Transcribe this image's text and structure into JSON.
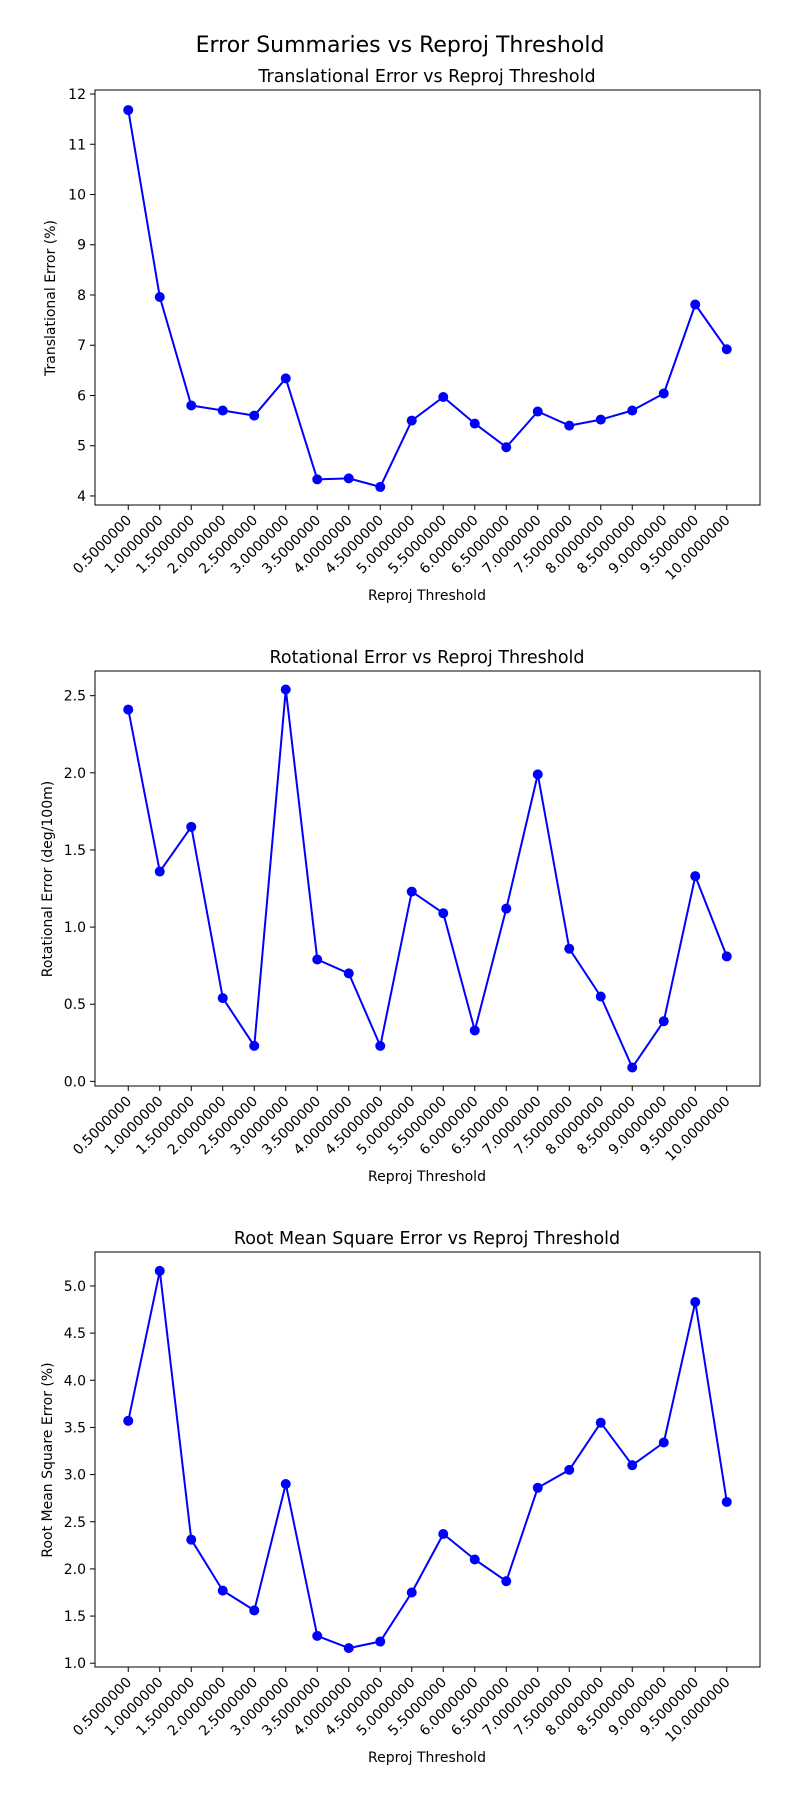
{
  "figure": {
    "title": "Error Summaries vs Reproj Threshold"
  },
  "colors": {
    "series": "#0000ff",
    "axes": "#000000",
    "background": "#ffffff"
  },
  "chart_data": [
    {
      "type": "line",
      "title": "Translational Error vs Reproj Threshold",
      "xlabel": "Reproj Threshold",
      "ylabel": "Translational Error (%)",
      "categories": [
        "0.5000000",
        "1.0000000",
        "1.5000000",
        "2.0000000",
        "2.5000000",
        "3.0000000",
        "3.5000000",
        "4.0000000",
        "4.5000000",
        "5.0000000",
        "5.5000000",
        "6.0000000",
        "6.5000000",
        "7.0000000",
        "7.5000000",
        "8.0000000",
        "8.5000000",
        "9.0000000",
        "9.5000000",
        "10.0000000"
      ],
      "values": [
        11.68,
        7.96,
        5.8,
        5.7,
        5.6,
        6.34,
        4.33,
        4.35,
        4.18,
        5.5,
        5.97,
        5.44,
        4.97,
        5.68,
        5.4,
        5.52,
        5.7,
        6.04,
        7.81,
        6.92
      ],
      "ylim": [
        3.82,
        12.08
      ],
      "yticks": [
        "4",
        "5",
        "6",
        "7",
        "8",
        "9",
        "10",
        "11",
        "12"
      ],
      "ytick_values": [
        4,
        5,
        6,
        7,
        8,
        9,
        10,
        11,
        12
      ],
      "grid": false,
      "marker": "circle"
    },
    {
      "type": "line",
      "title": "Rotational Error vs Reproj Threshold",
      "xlabel": "Reproj Threshold",
      "ylabel": "Rotational Error (deg/100m)",
      "categories": [
        "0.5000000",
        "1.0000000",
        "1.5000000",
        "2.0000000",
        "2.5000000",
        "3.0000000",
        "3.5000000",
        "4.0000000",
        "4.5000000",
        "5.0000000",
        "5.5000000",
        "6.0000000",
        "6.5000000",
        "7.0000000",
        "7.5000000",
        "8.0000000",
        "8.5000000",
        "9.0000000",
        "9.5000000",
        "10.0000000"
      ],
      "values": [
        2.41,
        1.36,
        1.65,
        0.54,
        0.23,
        2.54,
        0.79,
        0.7,
        0.23,
        1.23,
        1.09,
        0.33,
        1.12,
        1.99,
        0.86,
        0.55,
        0.09,
        0.39,
        1.33,
        0.81
      ],
      "ylim": [
        -0.03,
        2.66
      ],
      "yticks": [
        "0.0",
        "0.5",
        "1.0",
        "1.5",
        "2.0",
        "2.5"
      ],
      "ytick_values": [
        0,
        0.5,
        1,
        1.5,
        2,
        2.5
      ],
      "grid": false,
      "marker": "circle"
    },
    {
      "type": "line",
      "title": "Root Mean Square Error vs Reproj Threshold",
      "xlabel": "Reproj Threshold",
      "ylabel": "Root Mean Square Error (%)",
      "categories": [
        "0.5000000",
        "1.0000000",
        "1.5000000",
        "2.0000000",
        "2.5000000",
        "3.0000000",
        "3.5000000",
        "4.0000000",
        "4.5000000",
        "5.0000000",
        "5.5000000",
        "6.0000000",
        "6.5000000",
        "7.0000000",
        "7.5000000",
        "8.0000000",
        "8.5000000",
        "9.0000000",
        "9.5000000",
        "10.0000000"
      ],
      "values": [
        3.57,
        5.16,
        2.31,
        1.77,
        1.56,
        2.9,
        1.29,
        1.16,
        1.23,
        1.75,
        2.37,
        2.1,
        1.87,
        2.86,
        3.05,
        3.55,
        3.1,
        3.34,
        4.83,
        2.71
      ],
      "ylim": [
        0.96,
        5.36
      ],
      "yticks": [
        "1.0",
        "1.5",
        "2.0",
        "2.5",
        "3.0",
        "3.5",
        "4.0",
        "4.5",
        "5.0"
      ],
      "ytick_values": [
        1,
        1.5,
        2,
        2.5,
        3,
        3.5,
        4,
        4.5,
        5
      ],
      "grid": false,
      "marker": "circle"
    }
  ]
}
